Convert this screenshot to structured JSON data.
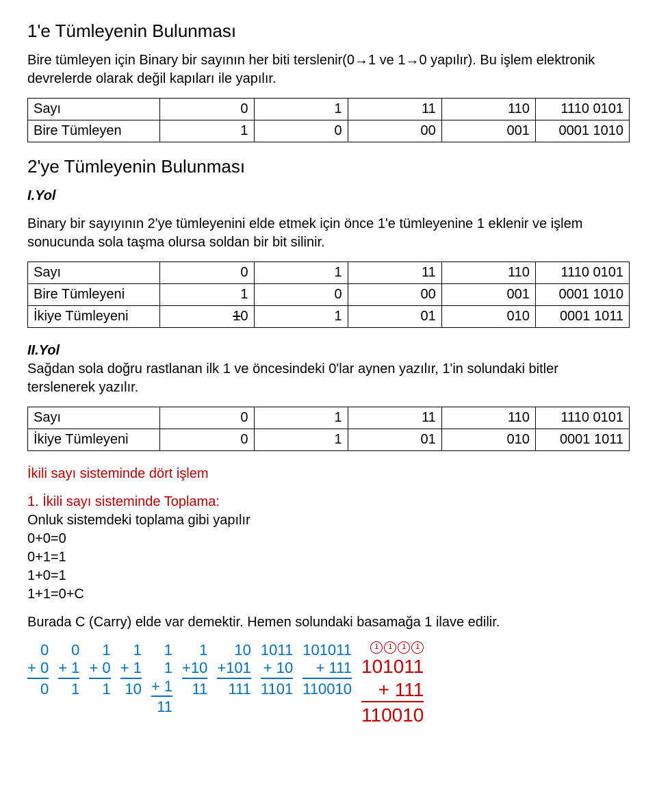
{
  "sec1": {
    "title": "1'e Tümleyenin Bulunması",
    "desc": "Bire tümleyen için Binary bir sayının her biti terslenir(0→1 ve 1→0 yapılır). Bu işlem elektronik devrelerde olarak değil kapıları ile yapılır."
  },
  "table1": {
    "rows": [
      {
        "label": "Sayı",
        "c": [
          "0",
          "1",
          "11",
          "110",
          "1110 0101"
        ]
      },
      {
        "label": "Bire Tümleyen",
        "c": [
          "1",
          "0",
          "00",
          "001",
          "0001 1010"
        ]
      }
    ]
  },
  "sec2": {
    "title": "2'ye Tümleyenin Bulunması",
    "way1_label": "I.Yol",
    "way1_desc": "Binary bir sayıyının 2'ye tümleyenini elde etmek için önce 1'e tümleyenine 1 eklenir ve işlem sonucunda sola taşma olursa soldan bir bit silinir."
  },
  "table2": {
    "rows": [
      {
        "label": "Sayı",
        "c": [
          "0",
          "1",
          "11",
          "110",
          "1110 0101"
        ],
        "strike_col0": false
      },
      {
        "label": "Bire  Tümleyeni",
        "c": [
          "1",
          "0",
          "00",
          "001",
          "0001 1010"
        ],
        "strike_col0": false
      },
      {
        "label": "İkiye Tümleyeni",
        "c0_strike": "1",
        "c0_rest": "0",
        "c": [
          "",
          "1",
          "01",
          "010",
          "0001 1011"
        ],
        "strike_col0": true
      }
    ]
  },
  "sec3": {
    "way2_label": "II.Yol",
    "way2_desc": "Sağdan sola doğru rastlanan ilk 1 ve öncesindeki 0'lar aynen yazılır, 1'in solundaki bitler terslenerek yazılır."
  },
  "table3": {
    "rows": [
      {
        "label": "Sayı",
        "c": [
          "0",
          "1",
          "11",
          "110",
          "1110 0101"
        ]
      },
      {
        "label": "İkiye Tümleyeni",
        "c": [
          "0",
          "1",
          "01",
          "010",
          "0001 1011"
        ]
      }
    ]
  },
  "sec4": {
    "heading": "İkili sayı sisteminde dört işlem",
    "sub_num": "1.",
    "sub_title": " İkili sayı sisteminde Toplama:",
    "line1": "Onluk sistemdeki toplama gibi yapılır",
    "r0": "0+0=0",
    "r1": "0+1=1",
    "r2": "1+0=1",
    "r3": "1+1=0+C",
    "carry_note": "Burada C (Carry) elde var demektir. Hemen solundaki basamağa 1 ilave edilir."
  },
  "arith": [
    {
      "a": "0",
      "b": "+ 0",
      "s": "0"
    },
    {
      "a": "0",
      "b": "+ 1",
      "s": "1"
    },
    {
      "a": "1",
      "b": "+ 0",
      "s": "1"
    },
    {
      "a": "1",
      "b": "+ 1",
      "s": "10"
    },
    {
      "a": "1",
      "b": "1",
      "c": "+ 1",
      "s": "11"
    },
    {
      "a": "1",
      "b": "+10",
      "s": "11"
    },
    {
      "a": "10",
      "b": "+101",
      "s": "111"
    },
    {
      "a": "1011",
      "b": "+  10",
      "s": "1101"
    },
    {
      "a": "101011",
      "b": "+     111",
      "s": "110010"
    }
  ],
  "arith_red": {
    "carries": [
      "1",
      "1",
      "1",
      "1"
    ],
    "a": "101011",
    "b": "+     111",
    "s": "110010"
  }
}
